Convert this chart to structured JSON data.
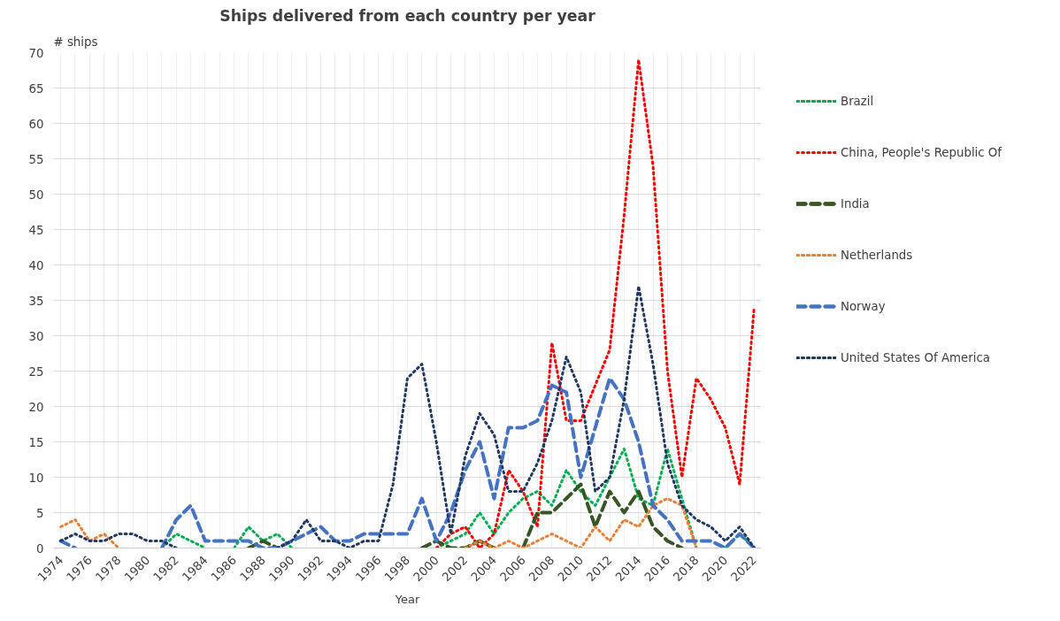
{
  "chart_data": {
    "type": "line",
    "title": "Ships delivered from each country per year",
    "xlabel": "Year",
    "ylabel": "# ships",
    "x": [
      1974,
      1975,
      1976,
      1977,
      1978,
      1979,
      1980,
      1981,
      1982,
      1983,
      1984,
      1985,
      1986,
      1987,
      1988,
      1989,
      1990,
      1991,
      1992,
      1993,
      1994,
      1995,
      1996,
      1997,
      1998,
      1999,
      2000,
      2001,
      2002,
      2003,
      2004,
      2005,
      2006,
      2007,
      2008,
      2009,
      2010,
      2011,
      2012,
      2013,
      2014,
      2015,
      2016,
      2017,
      2018,
      2019,
      2020,
      2021,
      2022
    ],
    "xlim": [
      1973.5,
      2022.5
    ],
    "xticks": [
      1974,
      {
        "value": 1975,
        "label": null
      },
      1976,
      {
        "value": 1977,
        "label": null
      },
      1978,
      {
        "value": 1979,
        "label": null
      },
      1980,
      {
        "value": 1981,
        "label": null
      },
      1982,
      {
        "value": 1983,
        "label": null
      },
      1984,
      {
        "value": 1985,
        "label": null
      },
      1986,
      {
        "value": 1987,
        "label": null
      },
      1988,
      {
        "value": 1989,
        "label": null
      },
      1990,
      {
        "value": 1991,
        "label": null
      },
      1992,
      {
        "value": 1993,
        "label": null
      },
      1994,
      {
        "value": 1995,
        "label": null
      },
      1996,
      {
        "value": 1997,
        "label": null
      },
      1998,
      {
        "value": 1999,
        "label": null
      },
      2000,
      {
        "value": 2001,
        "label": null
      },
      2002,
      {
        "value": 2003,
        "label": null
      },
      2004,
      {
        "value": 2005,
        "label": null
      },
      2006,
      {
        "value": 2007,
        "label": null
      },
      2008,
      {
        "value": 2009,
        "label": null
      },
      2010,
      {
        "value": 2011,
        "label": null
      },
      2012,
      {
        "value": 2013,
        "label": null
      },
      2014,
      {
        "value": 2015,
        "label": null
      },
      2016,
      {
        "value": 2017,
        "label": null
      },
      2018,
      {
        "value": 2019,
        "label": null
      },
      2020,
      {
        "value": 2021,
        "label": null
      },
      2022
    ],
    "ylim": [
      0,
      70
    ],
    "yticks": [
      0,
      5,
      10,
      15,
      20,
      25,
      30,
      35,
      40,
      45,
      50,
      55,
      60,
      65,
      70
    ],
    "grid": true,
    "legend": "right",
    "marker": "none",
    "series": [
      {
        "name": "Brazil",
        "color": "#00b050",
        "line_style": "dotted",
        "values": [
          null,
          null,
          null,
          null,
          null,
          null,
          null,
          0,
          2,
          1,
          0,
          null,
          0,
          3,
          1,
          2,
          0,
          null,
          null,
          null,
          null,
          null,
          null,
          null,
          null,
          null,
          0,
          1,
          2,
          5,
          2,
          5,
          7,
          8,
          6,
          11,
          8,
          6,
          10,
          14,
          7,
          6,
          14,
          7,
          0,
          null,
          0,
          2,
          0
        ]
      },
      {
        "name": "China, People's Republic Of",
        "color": "#ff0000",
        "line_style": "dotted",
        "values": [
          null,
          null,
          null,
          null,
          null,
          null,
          null,
          null,
          null,
          null,
          null,
          null,
          null,
          null,
          null,
          null,
          null,
          null,
          null,
          null,
          null,
          null,
          null,
          null,
          null,
          null,
          0,
          2,
          3,
          0,
          2,
          11,
          8,
          3,
          29,
          18,
          18,
          23,
          28,
          47,
          69,
          54,
          25,
          10,
          24,
          21,
          17,
          9,
          34
        ]
      },
      {
        "name": "India",
        "color": "#375623",
        "line_style": "dashed",
        "values": [
          null,
          null,
          null,
          null,
          null,
          null,
          null,
          null,
          null,
          null,
          null,
          null,
          null,
          0,
          1,
          0,
          null,
          null,
          null,
          null,
          null,
          null,
          null,
          null,
          null,
          0,
          1,
          0,
          0,
          1,
          0,
          null,
          0,
          5,
          5,
          7,
          9,
          3,
          8,
          5,
          8,
          3,
          1,
          0,
          null,
          null,
          null,
          null,
          null
        ]
      },
      {
        "name": "Netherlands",
        "color": "#ed7d31",
        "line_style": "dotted",
        "values": [
          3,
          4,
          1,
          2,
          0,
          null,
          null,
          null,
          null,
          null,
          null,
          null,
          null,
          null,
          null,
          null,
          null,
          null,
          null,
          null,
          null,
          null,
          null,
          null,
          null,
          null,
          null,
          null,
          0,
          1,
          0,
          1,
          0,
          1,
          2,
          1,
          0,
          3,
          1,
          4,
          3,
          6,
          7,
          6,
          0,
          null,
          null,
          null,
          null
        ]
      },
      {
        "name": "Norway",
        "color": "#4472c4",
        "line_style": "dashed",
        "values": [
          1,
          0,
          null,
          null,
          null,
          null,
          null,
          0,
          4,
          6,
          1,
          1,
          1,
          1,
          0,
          0,
          1,
          2,
          3,
          1,
          1,
          2,
          2,
          2,
          2,
          7,
          1,
          5,
          11,
          15,
          7,
          17,
          17,
          18,
          23,
          22,
          10,
          17,
          24,
          21,
          15,
          6,
          4,
          1,
          1,
          1,
          0,
          2,
          0
        ]
      },
      {
        "name": "United States Of America",
        "color": "#203864",
        "line_style": "dotted",
        "values": [
          1,
          2,
          1,
          1,
          2,
          2,
          1,
          1,
          0,
          null,
          null,
          null,
          null,
          null,
          null,
          0,
          1,
          4,
          1,
          1,
          0,
          1,
          1,
          9,
          24,
          26,
          15,
          2,
          13,
          19,
          16,
          8,
          8,
          12,
          18,
          27,
          22,
          8,
          10,
          21,
          37,
          26,
          12,
          6,
          4,
          3,
          1,
          3,
          0
        ]
      }
    ]
  }
}
